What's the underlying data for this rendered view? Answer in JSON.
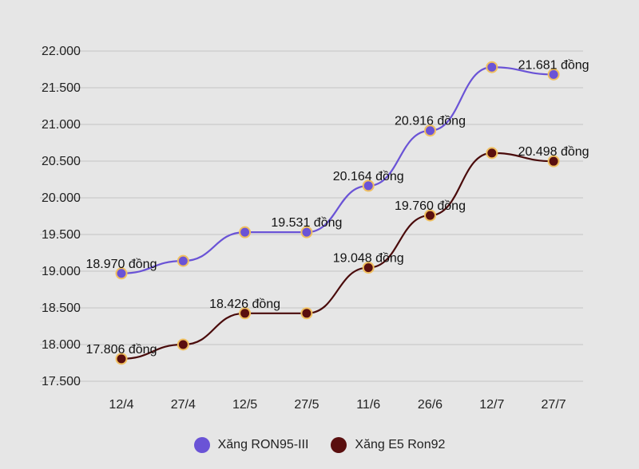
{
  "chart_data": {
    "type": "line",
    "categories": [
      "12/4",
      "27/4",
      "12/5",
      "27/5",
      "11/6",
      "26/6",
      "12/7",
      "27/7"
    ],
    "ylim": [
      17500,
      22000
    ],
    "yticks": [
      "17.500",
      "18.000",
      "18.500",
      "19.000",
      "19.500",
      "20.000",
      "20.500",
      "21.000",
      "21.500",
      "22.000"
    ],
    "grid": true,
    "legend_position": "bottom",
    "series": [
      {
        "name": "Xăng RON95-III",
        "color": "#6a53d6",
        "values": [
          18970,
          19140,
          19531,
          19531,
          20164,
          20916,
          21780,
          21681
        ],
        "labels": [
          "18.970 đồng",
          "",
          "",
          "19.531 đồng",
          "20.164 đồng",
          "20.916 đồng",
          "",
          "21.681 đồng"
        ]
      },
      {
        "name": "Xăng E5 Ron92",
        "color": "#5a0f0f",
        "values": [
          17806,
          18000,
          18426,
          18426,
          19048,
          19760,
          20610,
          20498
        ],
        "labels": [
          "17.806 đồng",
          "",
          "18.426 đồng",
          "",
          "19.048 đồng",
          "19.760 đồng",
          "",
          "20.498 đồng"
        ]
      }
    ],
    "marker_border": "#f0c060",
    "line_color_e5": "#4a0b0b"
  }
}
